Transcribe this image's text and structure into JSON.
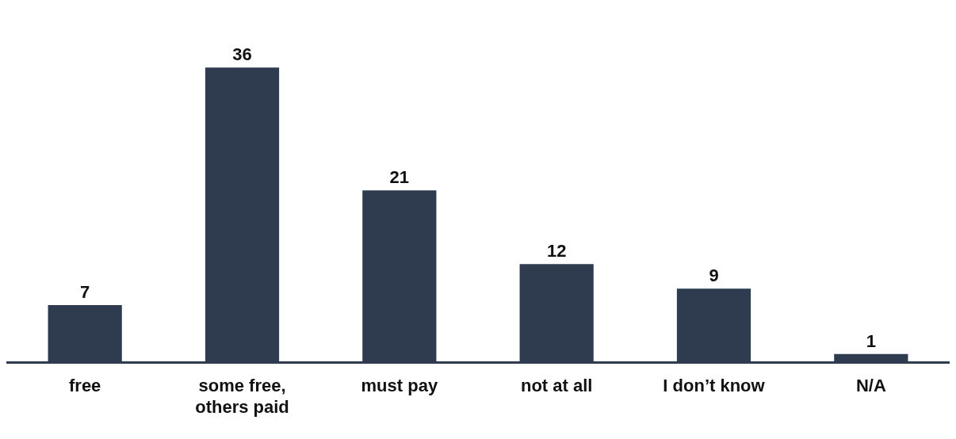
{
  "chart_data": {
    "type": "bar",
    "categories": [
      "free",
      "some free, others paid",
      "must pay",
      "not at all",
      "I don’t know",
      "N/A"
    ],
    "values": [
      7,
      36,
      21,
      12,
      9,
      1
    ],
    "color": "#2f3c4f",
    "data_labels": true,
    "grid": false,
    "legend": false
  }
}
